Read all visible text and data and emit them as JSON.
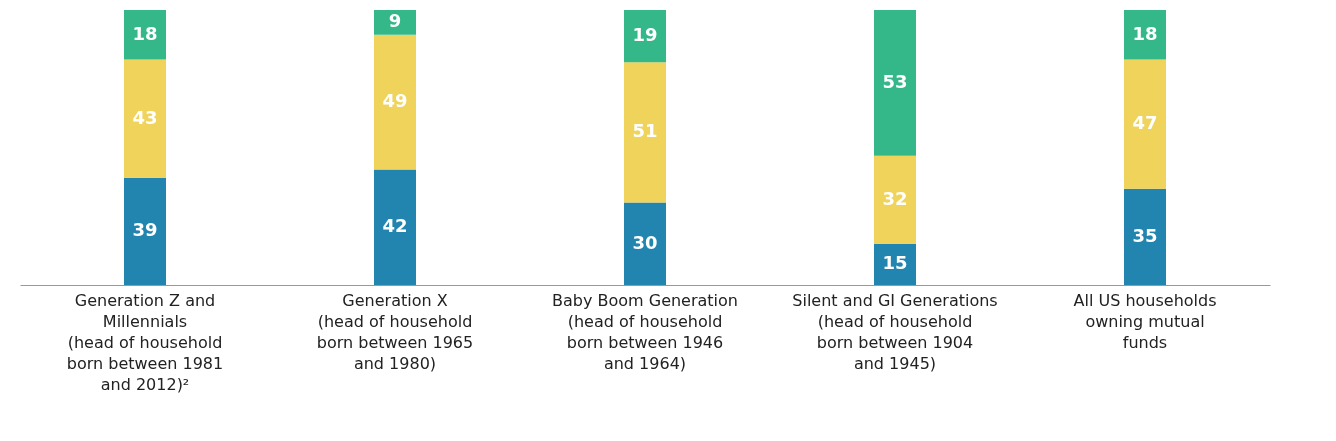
{
  "chart_data": {
    "type": "bar",
    "stacked": true,
    "data_labels": true,
    "grid": false,
    "categories": [
      "Generation Z and Millennials (head of household born between 1981 and 2012)²",
      "Generation X (head of household born between 1965 and 1980)",
      "Baby Boom Generation (head of household born between 1946 and 1964)",
      "Silent and GI Generations (head of household born between 1904 and 1945)",
      "All US households owning mutual funds"
    ],
    "series": [
      {
        "color": "#2185b0",
        "values": [
          39,
          42,
          30,
          15,
          35
        ]
      },
      {
        "color": "#efd35a",
        "values": [
          43,
          49,
          51,
          32,
          47
        ]
      },
      {
        "color": "#34b88a",
        "values": [
          18,
          9,
          19,
          53,
          18
        ]
      }
    ]
  }
}
